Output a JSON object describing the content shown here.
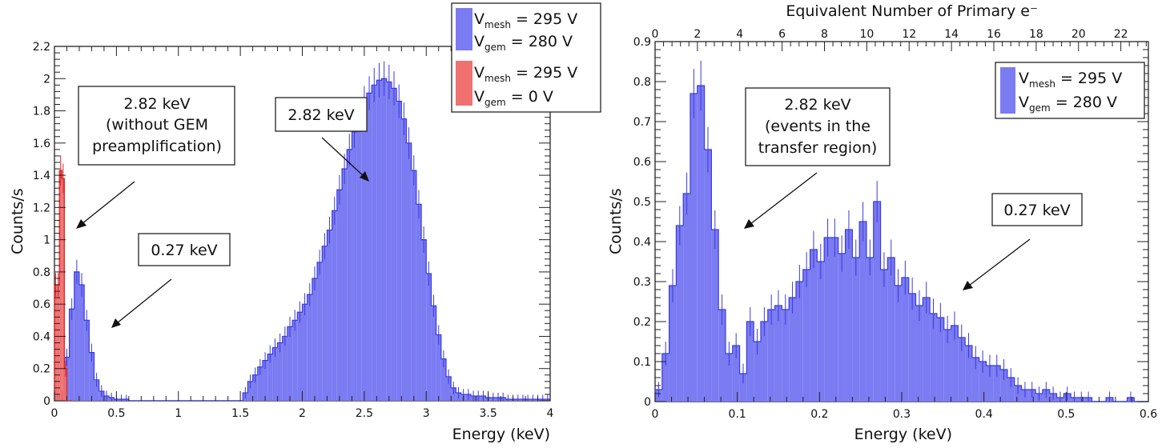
{
  "colors": {
    "blue_fill": "#7b7bf2",
    "blue_line": "#3a3ae0",
    "red_fill": "#f07070",
    "red_line": "#dd2222",
    "frame": "#222222"
  },
  "chart_data": [
    {
      "type": "histogram",
      "xlabel": "Energy (keV)",
      "ylabel": "Counts/s",
      "xlim": [
        0,
        4
      ],
      "ylim": [
        0,
        2.2
      ],
      "xticks": [
        "0",
        "0.5",
        "1",
        "1.5",
        "2",
        "2.5",
        "3",
        "3.5",
        "4"
      ],
      "yticks": [
        "0",
        "0.2",
        "0.4",
        "0.6",
        "0.8",
        "1",
        "1.2",
        "1.4",
        "1.6",
        "1.8",
        "2",
        "2.2"
      ],
      "series": [
        {
          "name": "V_mesh = 295 V, V_gem = 280 V",
          "bin_width": 0.04,
          "x_start": 0,
          "values": [
            0.02,
            0.03,
            0.27,
            0.57,
            0.8,
            0.72,
            0.5,
            0.3,
            0.13,
            0.06,
            0.03,
            0.02,
            0.01,
            0.01,
            0.01,
            0.0,
            0.0,
            0.0,
            0.0,
            0.0,
            0.0,
            0.0,
            0.0,
            0.0,
            0.0,
            0.0,
            0.0,
            0.0,
            0.0,
            0.0,
            0.0,
            0.0,
            0.0,
            0.0,
            0.0,
            0.0,
            0.0,
            0.0,
            0.05,
            0.12,
            0.16,
            0.21,
            0.25,
            0.29,
            0.33,
            0.36,
            0.4,
            0.46,
            0.5,
            0.55,
            0.6,
            0.66,
            0.76,
            0.86,
            0.96,
            1.06,
            1.18,
            1.31,
            1.44,
            1.56,
            1.67,
            1.77,
            1.85,
            1.91,
            1.96,
            1.99,
            2.0,
            1.98,
            1.94,
            1.86,
            1.75,
            1.6,
            1.43,
            1.22,
            1.0,
            0.79,
            0.59,
            0.41,
            0.26,
            0.15,
            0.08,
            0.05,
            0.04,
            0.04,
            0.03,
            0.03,
            0.03,
            0.02,
            0.02,
            0.02,
            0.02,
            0.01,
            0.01,
            0.01,
            0.01,
            0.01,
            0.01,
            0.01,
            0.01,
            0.01
          ]
        },
        {
          "name": "V_mesh = 295 V, V_gem = 0 V",
          "bin_width": 0.02,
          "x_start": 0,
          "values": [
            0.72,
            0.72,
            1.43,
            1.38,
            0.2,
            0.0,
            0.0
          ]
        }
      ],
      "legend": [
        {
          "main1": "V",
          "sub1": "mesh",
          "rest1": " = 295 V",
          "main2": "V",
          "sub2": "gem",
          "rest2": " = 280 V",
          "color": "#7b7bf2"
        },
        {
          "main1": "V",
          "sub1": "mesh",
          "rest1": " = 295 V",
          "main2": "V",
          "sub2": "gem",
          "rest2": " = 0 V",
          "color": "#f07070"
        }
      ],
      "annotations": [
        {
          "lines": [
            "2.82 keV",
            "(without GEM",
            "preamplification)"
          ]
        },
        {
          "lines": [
            "0.27 keV"
          ]
        },
        {
          "lines": [
            "2.82 keV"
          ]
        }
      ]
    },
    {
      "type": "histogram",
      "xlabel": "Energy (keV)",
      "ylabel": "Counts/s",
      "top_xlabel": "Equivalent Number of Primary e⁻",
      "xlim": [
        0,
        0.6
      ],
      "ylim": [
        0,
        0.9
      ],
      "xticks": [
        "0",
        "0.1",
        "0.2",
        "0.3",
        "0.4",
        "0.5",
        "0.6"
      ],
      "yticks": [
        "0",
        "0.1",
        "0.2",
        "0.3",
        "0.4",
        "0.5",
        "0.6",
        "0.7",
        "0.8",
        "0.9"
      ],
      "top_xticks": [
        "0",
        "2",
        "4",
        "6",
        "8",
        "10",
        "12",
        "14",
        "16",
        "18",
        "20",
        "22"
      ],
      "top_xlim": [
        0,
        23.3
      ],
      "series": [
        {
          "name": "V_mesh = 295 V, V_gem = 280 V",
          "bin_width": 0.00857,
          "x_start": 0,
          "values": [
            0.03,
            0.12,
            0.29,
            0.44,
            0.52,
            0.77,
            0.79,
            0.63,
            0.43,
            0.23,
            0.12,
            0.14,
            0.07,
            0.2,
            0.15,
            0.2,
            0.23,
            0.24,
            0.23,
            0.26,
            0.3,
            0.33,
            0.38,
            0.35,
            0.41,
            0.41,
            0.37,
            0.43,
            0.36,
            0.45,
            0.36,
            0.5,
            0.33,
            0.36,
            0.29,
            0.31,
            0.27,
            0.24,
            0.26,
            0.22,
            0.21,
            0.18,
            0.19,
            0.16,
            0.14,
            0.11,
            0.1,
            0.09,
            0.09,
            0.08,
            0.06,
            0.04,
            0.03,
            0.03,
            0.02,
            0.03,
            0.02,
            0.01,
            0.02,
            0.01,
            0.01,
            0.01,
            0.0,
            0.0,
            0.01,
            0.0,
            0.0,
            0.01,
            0.0,
            0.0
          ]
        }
      ],
      "legend": [
        {
          "main1": "V",
          "sub1": "mesh",
          "rest1": " = 295 V",
          "main2": "V",
          "sub2": "gem",
          "rest2": " = 280 V",
          "color": "#7b7bf2"
        }
      ],
      "annotations": [
        {
          "lines": [
            "2.82 keV",
            "(events in the",
            "transfer region)"
          ]
        },
        {
          "lines": [
            "0.27 keV"
          ]
        }
      ]
    }
  ]
}
